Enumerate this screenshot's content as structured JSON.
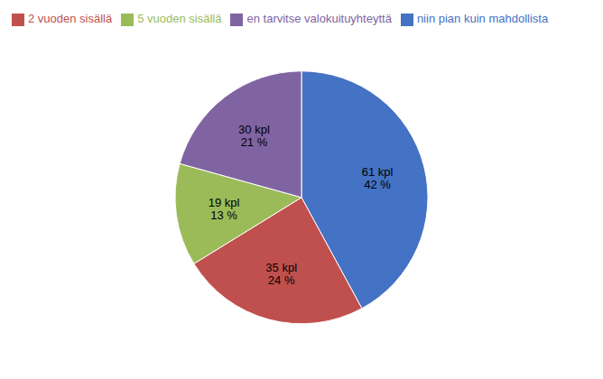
{
  "chart_data": {
    "type": "pie",
    "categories": [
      "niin pian kuin mahdollista",
      "2 vuoden sisällä",
      "5 vuoden sisällä",
      "en tarvitse valokuituyhteyttä"
    ],
    "values": [
      61,
      35,
      19,
      30
    ],
    "value_labels": [
      "61 kpl\n42 %",
      "35 kpl\n24 %",
      "19 kpl\n13 %",
      "30 kpl\n21 %"
    ],
    "colors": [
      "#4472C4",
      "#C0504D",
      "#9BBB59",
      "#8064A2"
    ],
    "data_labels": true,
    "legend": "upper left"
  }
}
